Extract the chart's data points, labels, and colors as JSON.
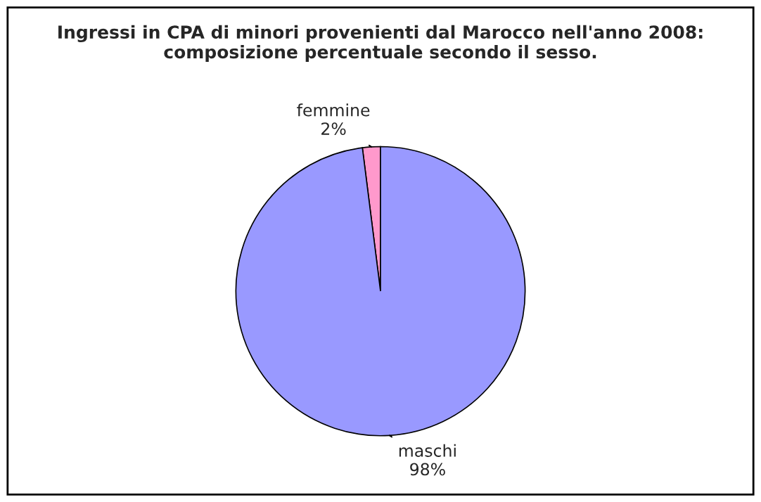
{
  "chart_data": {
    "type": "pie",
    "title": "Ingressi in CPA di minori provenienti dal Marocco nell'anno 2008: composizione percentuale secondo il sesso.",
    "categories": [
      "femmine",
      "maschi"
    ],
    "values": [
      2,
      98
    ],
    "colors": [
      "#ff99cc",
      "#9999ff"
    ],
    "value_labels": [
      "2%",
      "98%"
    ],
    "legend": false
  }
}
